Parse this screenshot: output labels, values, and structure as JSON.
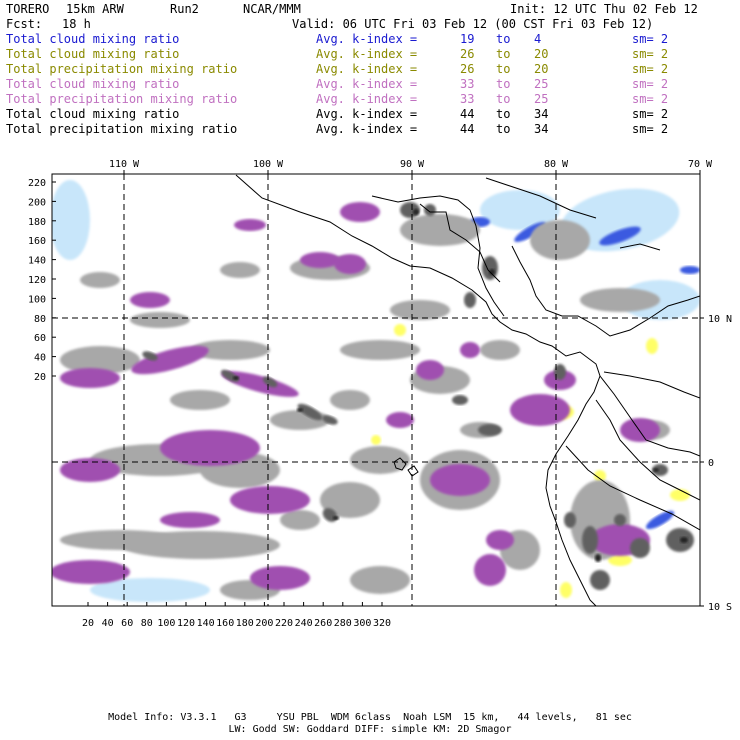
{
  "header": {
    "model": "TORERO",
    "resolution": "15km ARW",
    "run": "Run2",
    "org": "NCAR/MMM",
    "init": "Init: 12 UTC Thu 02 Feb 12",
    "fcst_label": "Fcst:",
    "fcst_value": "18 h",
    "valid": "Valid: 06 UTC Fri 03 Feb 12 (00 CST Fri 03 Feb 12)"
  },
  "legend": [
    {
      "field": "Total cloud mixing ratio",
      "avg": "Avg. k-index =",
      "from": "19",
      "to_word": "to",
      "to": "4",
      "sm": "sm= 2",
      "color": "#1a1ad0"
    },
    {
      "field": "Total cloud mixing ratio",
      "avg": "Avg. k-index =",
      "from": "26",
      "to_word": "to",
      "to": "20",
      "sm": "sm= 2",
      "color": "#8a8a00"
    },
    {
      "field": "Total precipitation mixing ratio",
      "avg": "Avg. k-index =",
      "from": "26",
      "to_word": "to",
      "to": "20",
      "sm": "sm= 2",
      "color": "#8a8a00"
    },
    {
      "field": "Total cloud mixing ratio",
      "avg": "Avg. k-index =",
      "from": "33",
      "to_word": "to",
      "to": "25",
      "sm": "sm= 2",
      "color": "#c070c0"
    },
    {
      "field": "Total precipitation mixing ratio",
      "avg": "Avg. k-index =",
      "from": "33",
      "to_word": "to",
      "to": "25",
      "sm": "sm= 2",
      "color": "#c070c0"
    },
    {
      "field": "Total cloud mixing ratio",
      "avg": "Avg. k-index =",
      "from": "44",
      "to_word": "to",
      "to": "34",
      "sm": "sm= 2",
      "color": "#000000"
    },
    {
      "field": "Total precipitation mixing ratio",
      "avg": "Avg. k-index =",
      "from": "44",
      "to_word": "to",
      "to": "34",
      "sm": "sm= 2",
      "color": "#000000"
    }
  ],
  "map": {
    "lon_labels": [
      "110 W",
      "100 W",
      "90 W",
      "80 W",
      "70 W"
    ],
    "lat_labels": [
      "10 N",
      "0",
      "10 S"
    ],
    "y_ticks": [
      "220",
      "200",
      "180",
      "160",
      "140",
      "120",
      "100",
      "80",
      "60",
      "40",
      "20"
    ],
    "x_ticks": [
      "20",
      "40",
      "60",
      "80",
      "100",
      "120",
      "140",
      "160",
      "180",
      "200",
      "220",
      "240",
      "260",
      "280",
      "300",
      "320"
    ],
    "colors": {
      "light_blue": "#c8e6fa",
      "blue": "#3a5ae0",
      "dark_blue": "#1010b0",
      "yellow": "#ffff66",
      "light_magenta": "#bd7ec6",
      "magenta": "#a050b0",
      "gray": "#a8a8a8",
      "dark_gray": "#606060",
      "black_core": "#202020"
    }
  },
  "footer": {
    "line1": "Model Info: V3.3.1   G3     YSU PBL  WDM 6class  Noah LSM  15 km,   44 levels,   81 sec",
    "line2": "LW: Godd SW: Goddard DIFF: simple KM: 2D Smagor"
  }
}
